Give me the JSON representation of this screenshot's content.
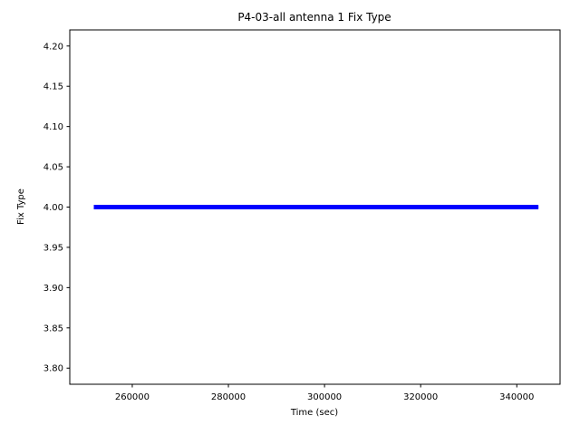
{
  "chart_data": {
    "type": "line",
    "title": "P4-03-all antenna 1 Fix Type",
    "xlabel": "Time (sec)",
    "ylabel": "Fix Type",
    "xlim": [
      247000,
      349000
    ],
    "ylim": [
      3.78,
      4.22
    ],
    "xticks": [
      260000,
      280000,
      300000,
      320000,
      340000
    ],
    "xtick_labels": [
      "260000",
      "280000",
      "300000",
      "320000",
      "340000"
    ],
    "yticks": [
      3.8,
      3.85,
      3.9,
      3.95,
      4.0,
      4.05,
      4.1,
      4.15,
      4.2
    ],
    "ytick_labels": [
      "3.80",
      "3.85",
      "3.90",
      "3.95",
      "4.00",
      "4.05",
      "4.10",
      "4.15",
      "4.20"
    ],
    "grid": false,
    "legend": "none",
    "line_color": "#0000ff",
    "line_width": 5,
    "series": [
      {
        "name": "antenna-1-fix-type",
        "color": "#0000ff",
        "x": [
          252000,
          344500
        ],
        "y": [
          4.0,
          4.0
        ],
        "note": "constant fix type value 4.0 over entire time span"
      }
    ]
  }
}
